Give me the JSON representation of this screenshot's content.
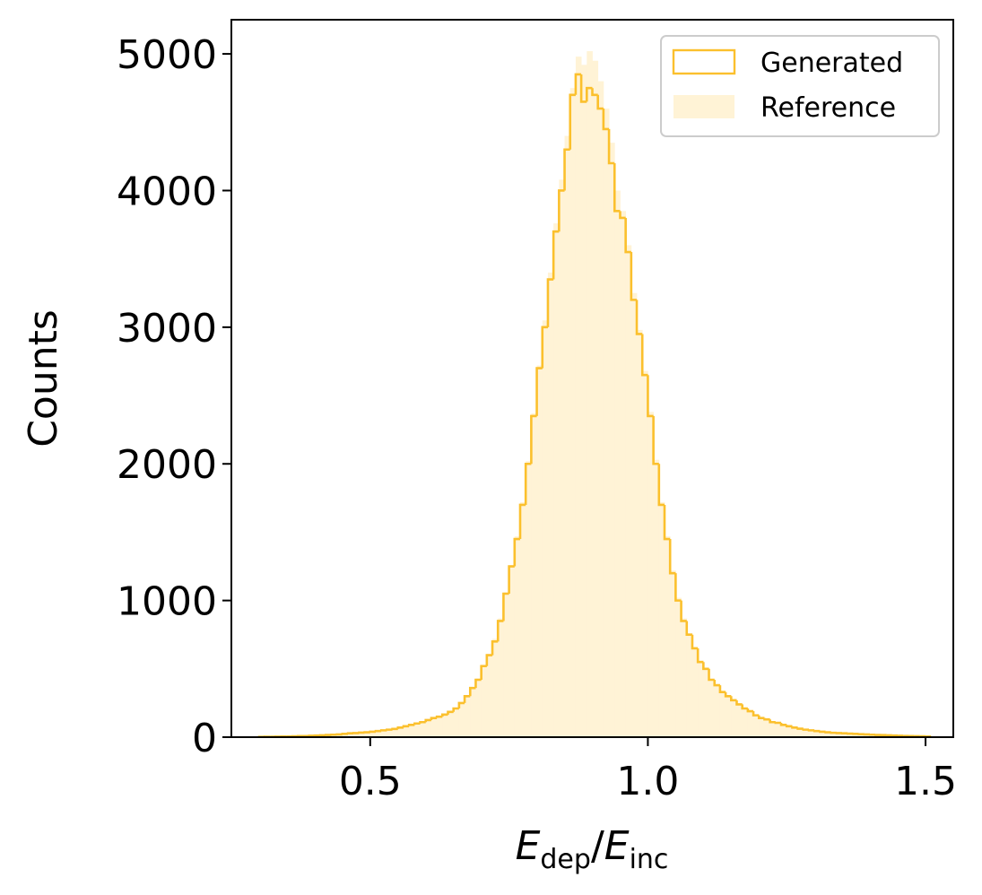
{
  "chart_data": {
    "type": "histogram",
    "xlabel": {
      "main": "E",
      "sub1": "dep",
      "slash": "/",
      "main2": "E",
      "sub2": "inc"
    },
    "ylabel": "Counts",
    "xlim": [
      0.25,
      1.55
    ],
    "ylim": [
      0,
      5250
    ],
    "xticks": [
      0.5,
      1.0,
      1.5
    ],
    "xtick_labels": [
      "0.5",
      "1.0",
      "1.5"
    ],
    "yticks": [
      0,
      1000,
      2000,
      3000,
      4000,
      5000
    ],
    "ytick_labels": [
      "0",
      "1000",
      "2000",
      "3000",
      "4000",
      "5000"
    ],
    "legend_position": "top-right",
    "colors": {
      "generated": "#fbc02d",
      "reference": "#fff3d6"
    },
    "bin_start": 0.3,
    "bin_width": 0.01,
    "series": [
      {
        "name": "Generated",
        "style": "step",
        "values": [
          2,
          3,
          3,
          4,
          5,
          5,
          6,
          8,
          8,
          10,
          12,
          14,
          16,
          18,
          20,
          24,
          28,
          30,
          33,
          36,
          40,
          45,
          50,
          55,
          60,
          70,
          80,
          90,
          100,
          110,
          125,
          140,
          150,
          165,
          185,
          210,
          250,
          300,
          360,
          420,
          520,
          600,
          700,
          850,
          1050,
          1250,
          1450,
          1700,
          2000,
          2350,
          2700,
          3000,
          3350,
          3700,
          4000,
          4300,
          4700,
          4850,
          4650,
          4750,
          4700,
          4600,
          4450,
          4200,
          3850,
          3800,
          3550,
          3200,
          2950,
          2650,
          2350,
          2000,
          1700,
          1450,
          1200,
          1000,
          850,
          750,
          650,
          550,
          500,
          420,
          380,
          330,
          300,
          270,
          240,
          210,
          190,
          160,
          140,
          130,
          110,
          105,
          90,
          80,
          70,
          62,
          55,
          50,
          45,
          40,
          36,
          32,
          30,
          28,
          26,
          24,
          22,
          20,
          18,
          16,
          15,
          14,
          12,
          10,
          9,
          8,
          7,
          6,
          5
        ]
      },
      {
        "name": "Reference",
        "style": "filled",
        "values": [
          2,
          3,
          3,
          4,
          5,
          5,
          6,
          8,
          9,
          10,
          12,
          14,
          16,
          18,
          21,
          24,
          28,
          31,
          34,
          37,
          41,
          46,
          51,
          56,
          62,
          72,
          82,
          92,
          102,
          112,
          127,
          142,
          152,
          168,
          188,
          215,
          255,
          305,
          365,
          430,
          530,
          610,
          720,
          870,
          1060,
          1260,
          1470,
          1720,
          2020,
          2370,
          2720,
          3050,
          3400,
          3760,
          4080,
          4400,
          4750,
          4980,
          4920,
          5020,
          4950,
          4800,
          4600,
          4350,
          4000,
          3850,
          3600,
          3250,
          2980,
          2680,
          2380,
          2030,
          1720,
          1470,
          1220,
          1020,
          870,
          760,
          660,
          560,
          505,
          425,
          385,
          335,
          305,
          272,
          242,
          212,
          192,
          162,
          142,
          132,
          112,
          106,
          91,
          81,
          71,
          63,
          56,
          51,
          46,
          41,
          37,
          33,
          31,
          29,
          27,
          25,
          23,
          21,
          19,
          17,
          16,
          15,
          13,
          11,
          10,
          9,
          8,
          7,
          6
        ]
      }
    ]
  }
}
